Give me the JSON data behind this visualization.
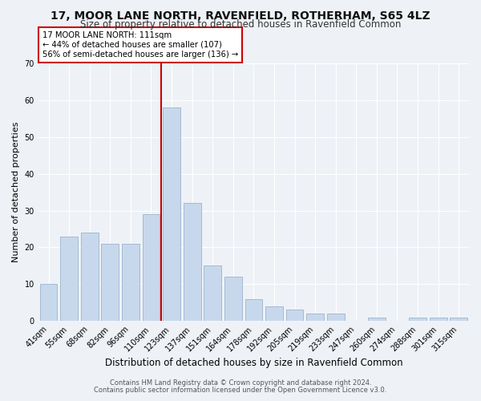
{
  "title": "17, MOOR LANE NORTH, RAVENFIELD, ROTHERHAM, S65 4LZ",
  "subtitle": "Size of property relative to detached houses in Ravenfield Common",
  "xlabel": "Distribution of detached houses by size in Ravenfield Common",
  "ylabel": "Number of detached properties",
  "categories": [
    "41sqm",
    "55sqm",
    "68sqm",
    "82sqm",
    "96sqm",
    "110sqm",
    "123sqm",
    "137sqm",
    "151sqm",
    "164sqm",
    "178sqm",
    "192sqm",
    "205sqm",
    "219sqm",
    "233sqm",
    "247sqm",
    "260sqm",
    "274sqm",
    "288sqm",
    "301sqm",
    "315sqm"
  ],
  "values": [
    10,
    23,
    24,
    21,
    21,
    29,
    58,
    32,
    15,
    12,
    6,
    4,
    3,
    2,
    2,
    0,
    1,
    0,
    1,
    1,
    1
  ],
  "bar_color": "#c8d8ec",
  "bar_edge_color": "#9ab4cc",
  "red_line_x": 6,
  "ylim": [
    0,
    70
  ],
  "annotation_title": "17 MOOR LANE NORTH: 111sqm",
  "annotation_line1": "← 44% of detached houses are smaller (107)",
  "annotation_line2": "56% of semi-detached houses are larger (136) →",
  "annotation_box_color": "#ffffff",
  "annotation_box_edge": "#cc0000",
  "footer1": "Contains HM Land Registry data © Crown copyright and database right 2024.",
  "footer2": "Contains public sector information licensed under the Open Government Licence v3.0.",
  "background_color": "#eef2f7",
  "title_fontsize": 10,
  "subtitle_fontsize": 8.5,
  "tick_fontsize": 7,
  "ylabel_fontsize": 8,
  "xlabel_fontsize": 8.5
}
